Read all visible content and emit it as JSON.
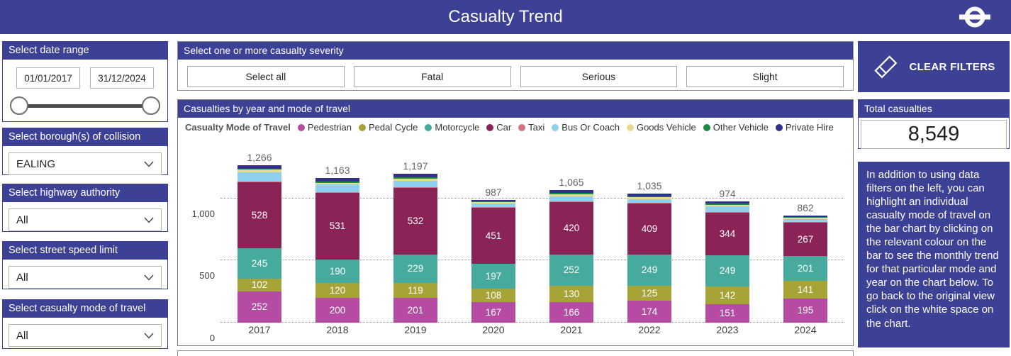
{
  "header": {
    "title": "Casualty Trend",
    "logo": "tfl-roundel"
  },
  "colors": {
    "theme_blue": "#3d4195",
    "total_label": "#666666",
    "axis_text": "#404040"
  },
  "sidebar": {
    "date_range": {
      "title": "Select date range",
      "start": "01/01/2017",
      "end": "31/12/2024"
    },
    "filters": [
      {
        "title": "Select borough(s) of collision",
        "value": "EALING"
      },
      {
        "title": "Select highway authority",
        "value": "All"
      },
      {
        "title": "Select street speed limit",
        "value": "All"
      },
      {
        "title": "Select casualty mode of travel",
        "value": "All"
      }
    ]
  },
  "severity": {
    "title": "Select one or more casualty severity",
    "buttons": [
      "Select all",
      "Fatal",
      "Serious",
      "Slight"
    ]
  },
  "right_panel": {
    "clear_filters_label": "CLEAR FILTERS",
    "total_casualties": {
      "title": "Total casualties",
      "value": "8,549"
    },
    "instructions": "In addition to using data filters on the left, you can highlight an individual casualty mode of travel on the bar chart by clicking on the relevant colour on the bar to see the monthly trend for that particular mode and year on the chart below. To go back to the original view click on the white space on the chart."
  },
  "chart": {
    "title": "Casualties by year and mode of travel",
    "legend_title": "Casualty Mode of Travel"
  },
  "chart_data": {
    "type": "bar",
    "stacked": true,
    "title": "Casualties by year and mode of travel",
    "legend_position": "top",
    "grid": "dotted-horizontal",
    "categories": [
      "2017",
      "2018",
      "2019",
      "2020",
      "2021",
      "2022",
      "2023",
      "2024"
    ],
    "totals": [
      1266,
      1163,
      1197,
      987,
      1065,
      1035,
      974,
      862
    ],
    "totals_display": [
      "1,266",
      "1,163",
      "1,197",
      "987",
      "1,065",
      "1,035",
      "974",
      "862"
    ],
    "ylim": [
      0,
      1320
    ],
    "yticks": [
      0,
      500,
      1000
    ],
    "ytick_labels": [
      "0",
      "500",
      "1,000"
    ],
    "series": [
      {
        "name": "Pedestrian",
        "color": "#b54ba2",
        "labeled": true,
        "values": [
          252,
          200,
          201,
          167,
          166,
          174,
          151,
          195
        ]
      },
      {
        "name": "Pedal Cycle",
        "color": "#a6a437",
        "labeled": true,
        "values": [
          102,
          120,
          119,
          108,
          130,
          125,
          142,
          141
        ]
      },
      {
        "name": "Motorcycle",
        "color": "#46ab9d",
        "labeled": true,
        "values": [
          245,
          190,
          229,
          197,
          252,
          249,
          249,
          201
        ]
      },
      {
        "name": "Car",
        "color": "#8a2356",
        "labeled": true,
        "values": [
          528,
          531,
          532,
          451,
          420,
          409,
          344,
          267
        ]
      },
      {
        "name": "Taxi",
        "color": "#d3737f",
        "labeled": false,
        "estimated": true,
        "values": [
          8,
          6,
          10,
          6,
          6,
          6,
          6,
          5
        ]
      },
      {
        "name": "Bus Or Coach",
        "color": "#8dd0f0",
        "labeled": false,
        "estimated": true,
        "values": [
          74,
          62,
          48,
          26,
          40,
          30,
          40,
          24
        ]
      },
      {
        "name": "Goods Vehicle",
        "color": "#e9da8e",
        "labeled": false,
        "estimated": true,
        "values": [
          20,
          16,
          18,
          12,
          16,
          14,
          14,
          10
        ]
      },
      {
        "name": "Other Vehicle",
        "color": "#1c8a44",
        "labeled": false,
        "estimated": true,
        "values": [
          10,
          8,
          12,
          6,
          12,
          6,
          10,
          7
        ]
      },
      {
        "name": "Private Hire",
        "color": "#31308d",
        "labeled": false,
        "estimated": true,
        "values": [
          27,
          30,
          28,
          14,
          23,
          22,
          18,
          12
        ]
      }
    ]
  }
}
